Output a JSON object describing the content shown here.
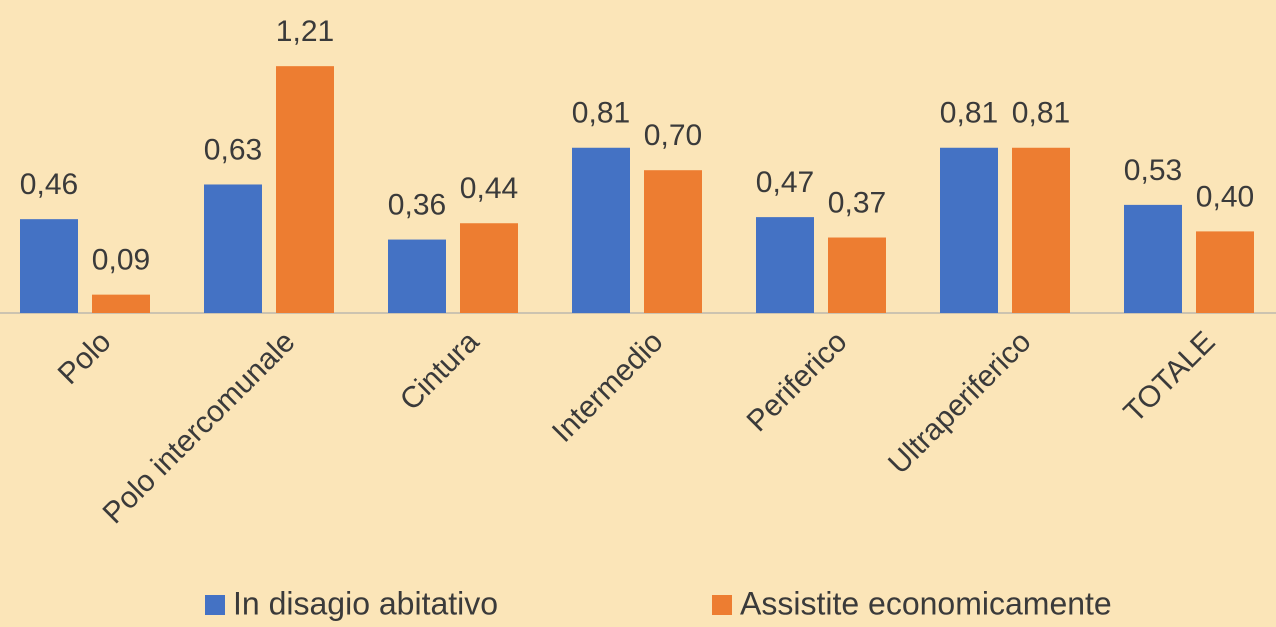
{
  "chart_data": {
    "type": "bar",
    "categories": [
      "Polo",
      "Polo intercomunale",
      "Cintura",
      "Intermedio",
      "Periferico",
      "Ultraperiferico",
      "TOTALE"
    ],
    "series": [
      {
        "name": "In disagio abitativo",
        "color": "#4472c4",
        "values": [
          0.46,
          0.63,
          0.36,
          0.81,
          0.47,
          0.81,
          0.53
        ],
        "value_labels": [
          "0,46",
          "0,63",
          "0,36",
          "0,81",
          "0,47",
          "0,81",
          "0,53"
        ]
      },
      {
        "name": "Assistite economicamente",
        "color": "#ed7d31",
        "values": [
          0.09,
          1.21,
          0.44,
          0.7,
          0.37,
          0.81,
          0.4
        ],
        "value_labels": [
          "0,09",
          "1,21",
          "0,44",
          "0,70",
          "0,37",
          "0,81",
          "0,40"
        ]
      }
    ]
  }
}
